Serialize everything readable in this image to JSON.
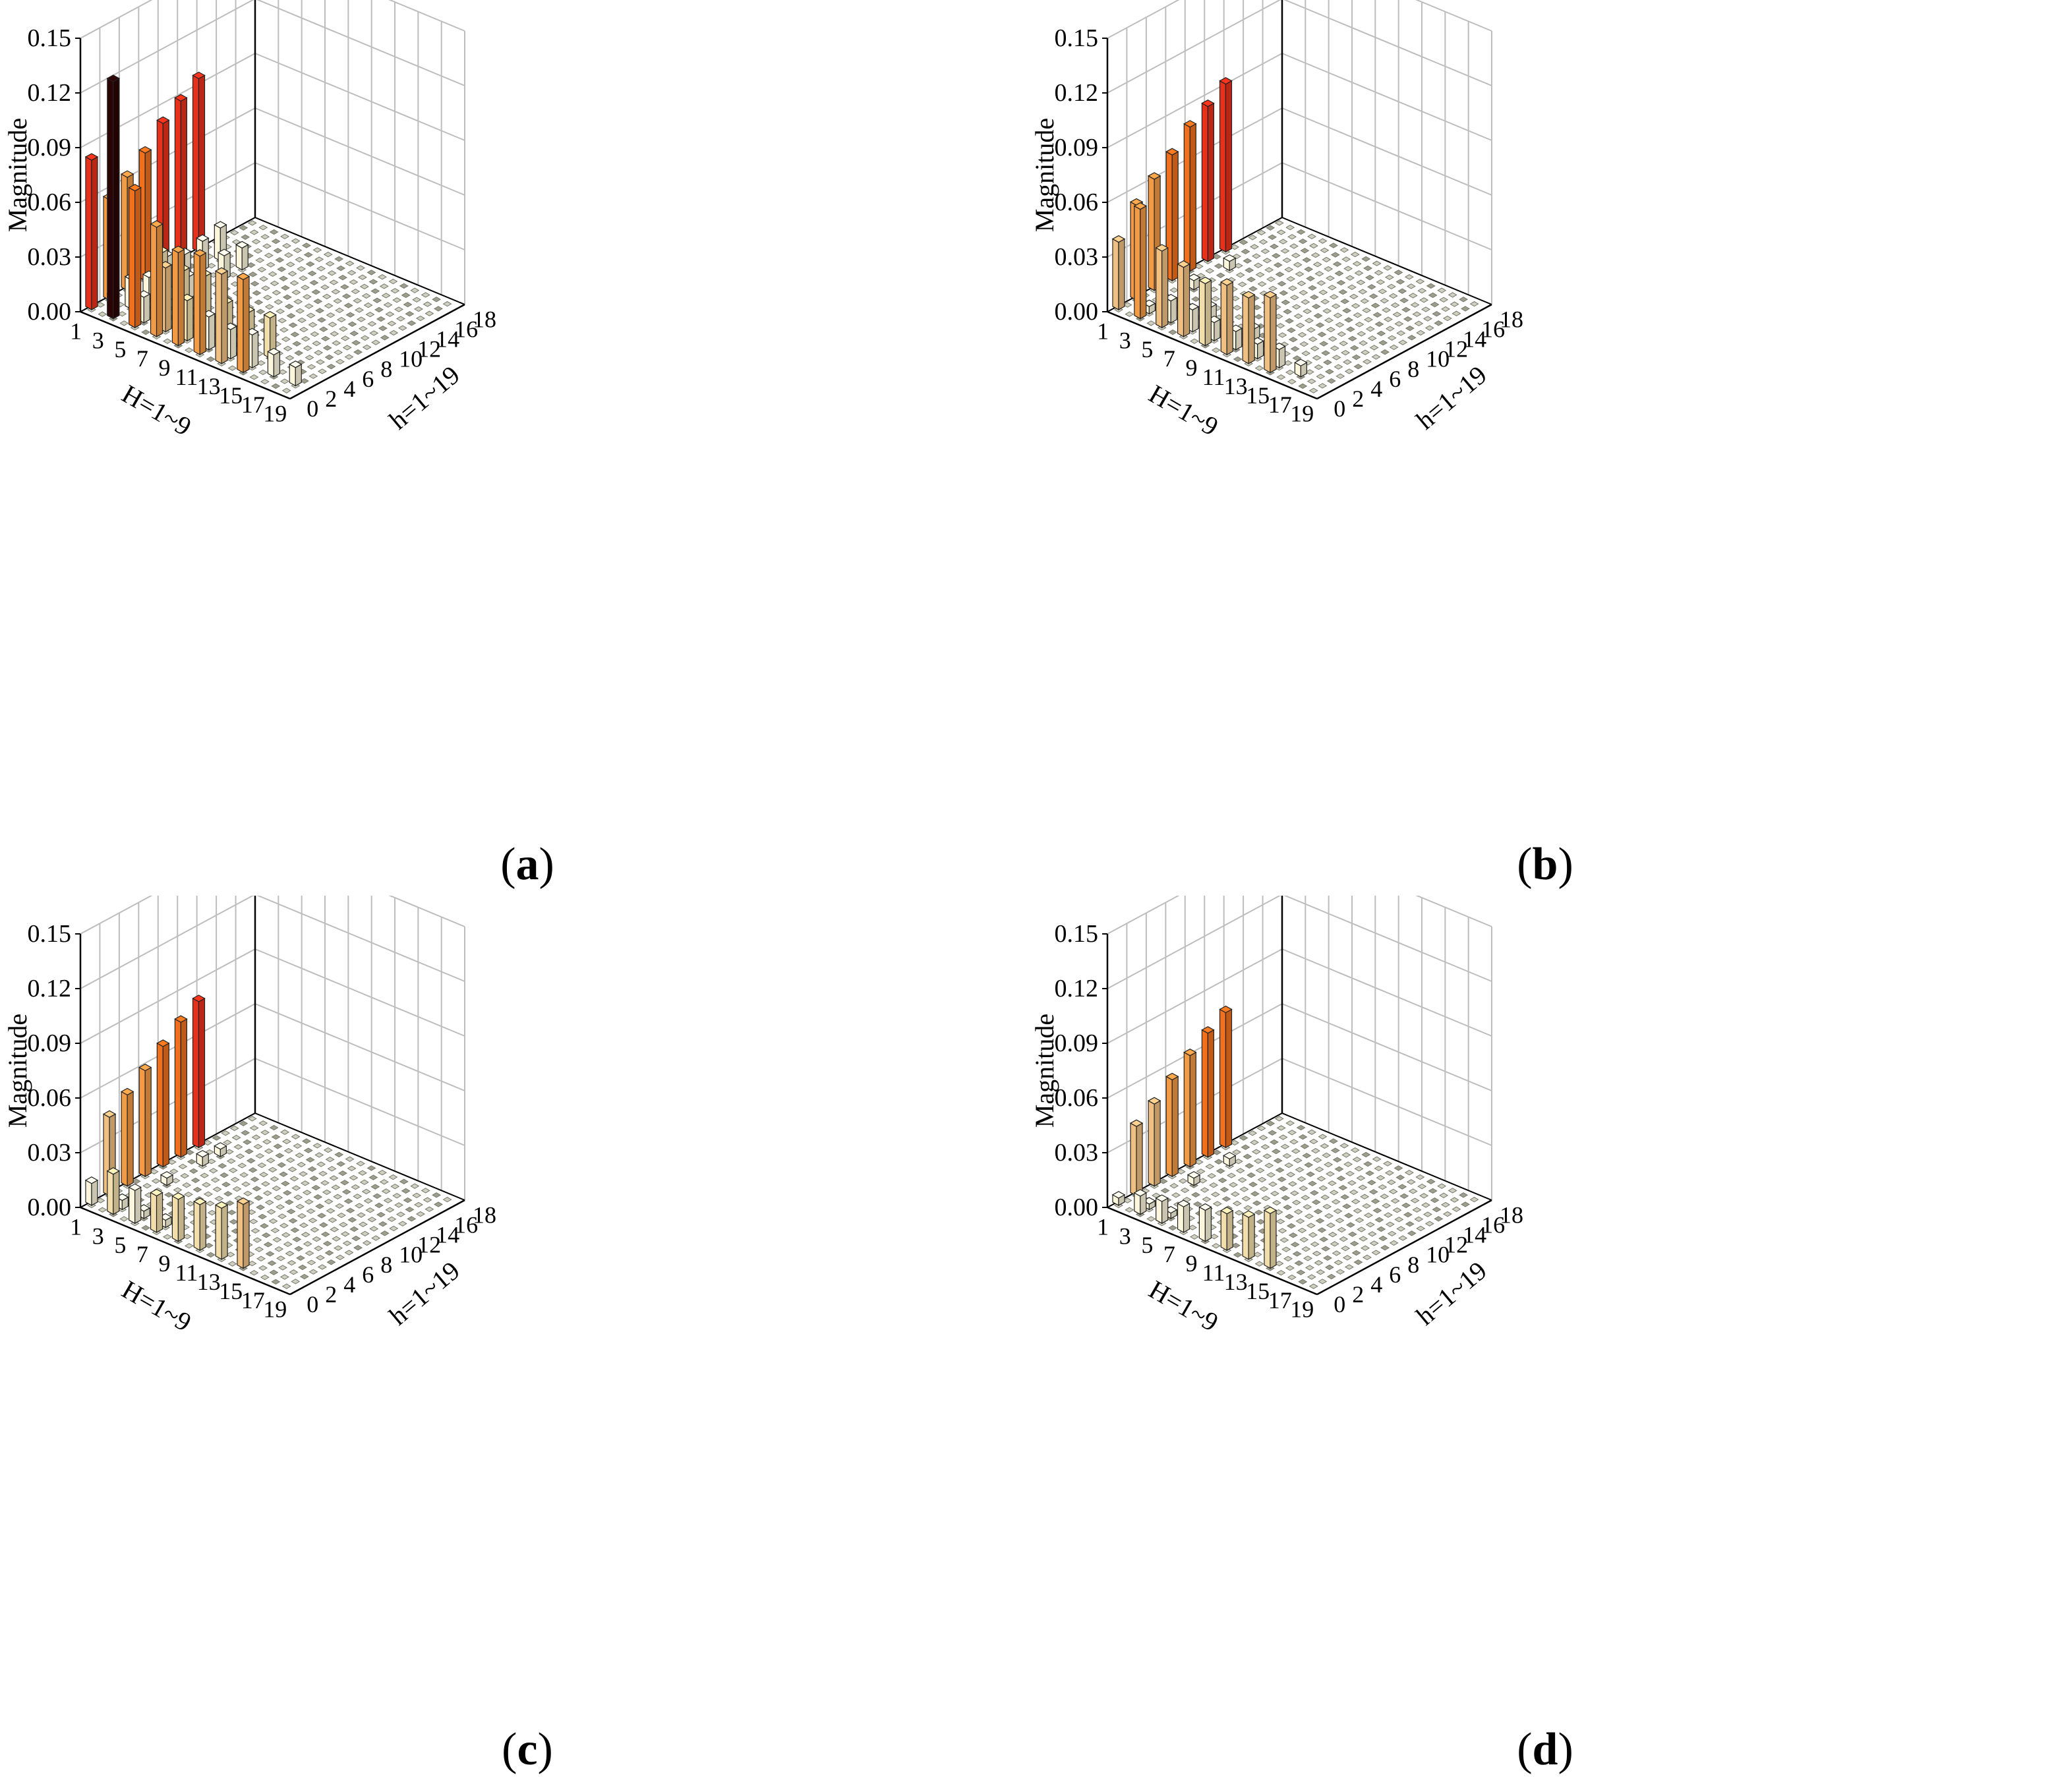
{
  "figure": {
    "captions": [
      "(a)",
      "(b)",
      "(c)",
      "(d)"
    ],
    "caption_letters": [
      "a",
      "b",
      "c",
      "d"
    ]
  },
  "colors": {
    "background": "#ffffff",
    "grid": "#bdbdbd",
    "axis": "#000000",
    "colormap": [
      "#fbf6dc",
      "#f2deab",
      "#f0bf82",
      "#f39a45",
      "#f0701c",
      "#e8311a",
      "#d0170d",
      "#2a0404"
    ]
  },
  "chart_data": [
    {
      "type": "bar",
      "subtype": "3d-bar",
      "panel": "a",
      "zlabel": "Magnitude",
      "xlabel": "H=1~9",
      "ylabel": "h=1~19",
      "zlim": [
        0,
        0.15
      ],
      "ztick_labels": [
        "0.00",
        "0.03",
        "0.06",
        "0.09",
        "0.12",
        "0.15"
      ],
      "ztick_values": [
        0,
        0.03,
        0.06,
        0.09,
        0.12,
        0.15
      ],
      "x_tick_labels": [
        "1",
        "3",
        "5",
        "7",
        "9",
        "11",
        "13",
        "15",
        "17",
        "19"
      ],
      "y_tick_labels": [
        "0",
        "2",
        "4",
        "6",
        "8",
        "10",
        "12",
        "14",
        "16",
        "18"
      ],
      "grid": true,
      "main_bars": [
        {
          "H": 1,
          "h": 0,
          "value": 0.082
        },
        {
          "H": 3,
          "h": 0,
          "value": 0.13
        },
        {
          "H": 5,
          "h": 0,
          "value": 0.075
        },
        {
          "H": 7,
          "h": 0,
          "value": 0.06
        },
        {
          "H": 9,
          "h": 0,
          "value": 0.051
        },
        {
          "H": 11,
          "h": 0,
          "value": 0.054
        },
        {
          "H": 13,
          "h": 0,
          "value": 0.049
        },
        {
          "H": 15,
          "h": 0,
          "value": 0.051
        },
        {
          "H": 1,
          "h": 2,
          "value": 0.055
        },
        {
          "H": 1,
          "h": 4,
          "value": 0.062
        },
        {
          "H": 1,
          "h": 6,
          "value": 0.07
        },
        {
          "H": 1,
          "h": 8,
          "value": 0.081
        },
        {
          "H": 1,
          "h": 10,
          "value": 0.088
        },
        {
          "H": 1,
          "h": 12,
          "value": 0.095
        }
      ],
      "secondary_bars": [
        {
          "H": 3,
          "h": 0,
          "value": 0.012
        },
        {
          "H": 5,
          "h": 1,
          "value": 0.014
        },
        {
          "H": 3,
          "h": 2,
          "value": 0.016
        },
        {
          "H": 5,
          "h": 3,
          "value": 0.033
        },
        {
          "H": 7,
          "h": 1,
          "value": 0.035
        },
        {
          "H": 7,
          "h": 3,
          "value": 0.028
        },
        {
          "H": 9,
          "h": 1,
          "value": 0.022
        },
        {
          "H": 9,
          "h": 3,
          "value": 0.03
        },
        {
          "H": 11,
          "h": 1,
          "value": 0.018
        },
        {
          "H": 11,
          "h": 3,
          "value": 0.02
        },
        {
          "H": 13,
          "h": 1,
          "value": 0.016
        },
        {
          "H": 13,
          "h": 3,
          "value": 0.02
        },
        {
          "H": 15,
          "h": 1,
          "value": 0.018
        },
        {
          "H": 15,
          "h": 3,
          "value": 0.022
        },
        {
          "H": 17,
          "h": 1,
          "value": 0.012
        },
        {
          "H": 19,
          "h": 1,
          "value": 0.01
        },
        {
          "H": 3,
          "h": 4,
          "value": 0.012
        },
        {
          "H": 3,
          "h": 6,
          "value": 0.018
        },
        {
          "H": 3,
          "h": 8,
          "value": 0.014
        },
        {
          "H": 3,
          "h": 10,
          "value": 0.016
        },
        {
          "H": 5,
          "h": 6,
          "value": 0.012
        },
        {
          "H": 5,
          "h": 10,
          "value": 0.013
        },
        {
          "H": 3,
          "h": 12,
          "value": 0.018
        },
        {
          "H": 5,
          "h": 12,
          "value": 0.012
        }
      ],
      "floor_markers": true
    },
    {
      "type": "bar",
      "subtype": "3d-bar",
      "panel": "b",
      "zlabel": "Magnitude",
      "xlabel": "H=1~9",
      "ylabel": "h=1~19",
      "zlim": [
        0,
        0.15
      ],
      "ztick_labels": [
        "0.00",
        "0.03",
        "0.06",
        "0.09",
        "0.12",
        "0.15"
      ],
      "ztick_values": [
        0,
        0.03,
        0.06,
        0.09,
        0.12,
        0.15
      ],
      "x_tick_labels": [
        "1",
        "3",
        "5",
        "7",
        "9",
        "11",
        "13",
        "15",
        "17",
        "19"
      ],
      "y_tick_labels": [
        "0",
        "2",
        "4",
        "6",
        "8",
        "10",
        "12",
        "14",
        "16",
        "18"
      ],
      "grid": true,
      "main_bars": [
        {
          "H": 1,
          "h": 0,
          "value": 0.037
        },
        {
          "H": 3,
          "h": 0,
          "value": 0.06
        },
        {
          "H": 5,
          "h": 0,
          "value": 0.042
        },
        {
          "H": 7,
          "h": 0,
          "value": 0.038
        },
        {
          "H": 9,
          "h": 0,
          "value": 0.034
        },
        {
          "H": 11,
          "h": 0,
          "value": 0.038
        },
        {
          "H": 13,
          "h": 0,
          "value": 0.036
        },
        {
          "H": 15,
          "h": 0,
          "value": 0.041
        },
        {
          "H": 1,
          "h": 2,
          "value": 0.052
        },
        {
          "H": 1,
          "h": 4,
          "value": 0.061
        },
        {
          "H": 1,
          "h": 6,
          "value": 0.069
        },
        {
          "H": 1,
          "h": 8,
          "value": 0.079
        },
        {
          "H": 1,
          "h": 10,
          "value": 0.085
        },
        {
          "H": 1,
          "h": 12,
          "value": 0.092
        }
      ],
      "secondary_bars": [
        {
          "H": 3,
          "h": 1,
          "value": 0.004
        },
        {
          "H": 5,
          "h": 1,
          "value": 0.012
        },
        {
          "H": 7,
          "h": 1,
          "value": 0.012
        },
        {
          "H": 9,
          "h": 1,
          "value": 0.01
        },
        {
          "H": 11,
          "h": 1,
          "value": 0.01
        },
        {
          "H": 13,
          "h": 1,
          "value": 0.008
        },
        {
          "H": 15,
          "h": 1,
          "value": 0.01
        },
        {
          "H": 17,
          "h": 1,
          "value": 0.006
        },
        {
          "H": 7,
          "h": 3,
          "value": 0.008
        },
        {
          "H": 11,
          "h": 3,
          "value": 0.006
        },
        {
          "H": 3,
          "h": 6,
          "value": 0.005
        },
        {
          "H": 3,
          "h": 10,
          "value": 0.005
        }
      ],
      "floor_markers": true
    },
    {
      "type": "bar",
      "subtype": "3d-bar",
      "panel": "c",
      "zlabel": "Magnitude",
      "xlabel": "H=1~9",
      "ylabel": "h=1~19",
      "zlim": [
        0,
        0.15
      ],
      "ztick_labels": [
        "0.00",
        "0.03",
        "0.06",
        "0.09",
        "0.12",
        "0.15"
      ],
      "ztick_values": [
        0,
        0.03,
        0.06,
        0.09,
        0.12,
        0.15
      ],
      "x_tick_labels": [
        "1",
        "3",
        "5",
        "7",
        "9",
        "11",
        "13",
        "15",
        "17",
        "19"
      ],
      "y_tick_labels": [
        "0",
        "2",
        "4",
        "6",
        "8",
        "10",
        "12",
        "14",
        "16",
        "18"
      ],
      "grid": true,
      "main_bars": [
        {
          "H": 1,
          "h": 0,
          "value": 0.012
        },
        {
          "H": 3,
          "h": 0,
          "value": 0.022
        },
        {
          "H": 5,
          "h": 0,
          "value": 0.018
        },
        {
          "H": 7,
          "h": 0,
          "value": 0.02
        },
        {
          "H": 9,
          "h": 0,
          "value": 0.023
        },
        {
          "H": 11,
          "h": 0,
          "value": 0.025
        },
        {
          "H": 13,
          "h": 0,
          "value": 0.028
        },
        {
          "H": 15,
          "h": 0,
          "value": 0.035
        },
        {
          "H": 1,
          "h": 2,
          "value": 0.043
        },
        {
          "H": 1,
          "h": 4,
          "value": 0.05
        },
        {
          "H": 1,
          "h": 6,
          "value": 0.058
        },
        {
          "H": 1,
          "h": 8,
          "value": 0.066
        },
        {
          "H": 1,
          "h": 10,
          "value": 0.074
        },
        {
          "H": 1,
          "h": 12,
          "value": 0.08
        }
      ],
      "secondary_bars": [
        {
          "H": 3,
          "h": 1,
          "value": 0.005
        },
        {
          "H": 5,
          "h": 1,
          "value": 0.004
        },
        {
          "H": 7,
          "h": 1,
          "value": 0.004
        },
        {
          "H": 3,
          "h": 6,
          "value": 0.004
        },
        {
          "H": 3,
          "h": 10,
          "value": 0.005
        },
        {
          "H": 3,
          "h": 12,
          "value": 0.004
        }
      ],
      "floor_markers": true
    },
    {
      "type": "bar",
      "subtype": "3d-bar",
      "panel": "d",
      "zlabel": "Magnitude",
      "xlabel": "H=1~9",
      "ylabel": "h=1~19",
      "zlim": [
        0,
        0.15
      ],
      "ztick_labels": [
        "0.00",
        "0.03",
        "0.06",
        "0.09",
        "0.12",
        "0.15"
      ],
      "ztick_values": [
        0,
        0.03,
        0.06,
        0.09,
        0.12,
        0.15
      ],
      "x_tick_labels": [
        "1",
        "3",
        "5",
        "7",
        "9",
        "11",
        "13",
        "15",
        "17",
        "19"
      ],
      "y_tick_labels": [
        "0",
        "2",
        "4",
        "6",
        "8",
        "10",
        "12",
        "14",
        "16",
        "18"
      ],
      "grid": true,
      "main_bars": [
        {
          "H": 1,
          "h": 0,
          "value": 0.004
        },
        {
          "H": 3,
          "h": 0,
          "value": 0.01
        },
        {
          "H": 5,
          "h": 0,
          "value": 0.012
        },
        {
          "H": 7,
          "h": 0,
          "value": 0.014
        },
        {
          "H": 9,
          "h": 0,
          "value": 0.017
        },
        {
          "H": 11,
          "h": 0,
          "value": 0.02
        },
        {
          "H": 13,
          "h": 0,
          "value": 0.023
        },
        {
          "H": 15,
          "h": 0,
          "value": 0.03
        },
        {
          "H": 1,
          "h": 2,
          "value": 0.038
        },
        {
          "H": 1,
          "h": 4,
          "value": 0.045
        },
        {
          "H": 1,
          "h": 6,
          "value": 0.053
        },
        {
          "H": 1,
          "h": 8,
          "value": 0.061
        },
        {
          "H": 1,
          "h": 10,
          "value": 0.068
        },
        {
          "H": 1,
          "h": 12,
          "value": 0.074
        }
      ],
      "secondary_bars": [
        {
          "H": 3,
          "h": 1,
          "value": 0.003
        },
        {
          "H": 5,
          "h": 1,
          "value": 0.003
        },
        {
          "H": 3,
          "h": 6,
          "value": 0.004
        },
        {
          "H": 3,
          "h": 10,
          "value": 0.004
        }
      ],
      "floor_markers": true
    }
  ]
}
